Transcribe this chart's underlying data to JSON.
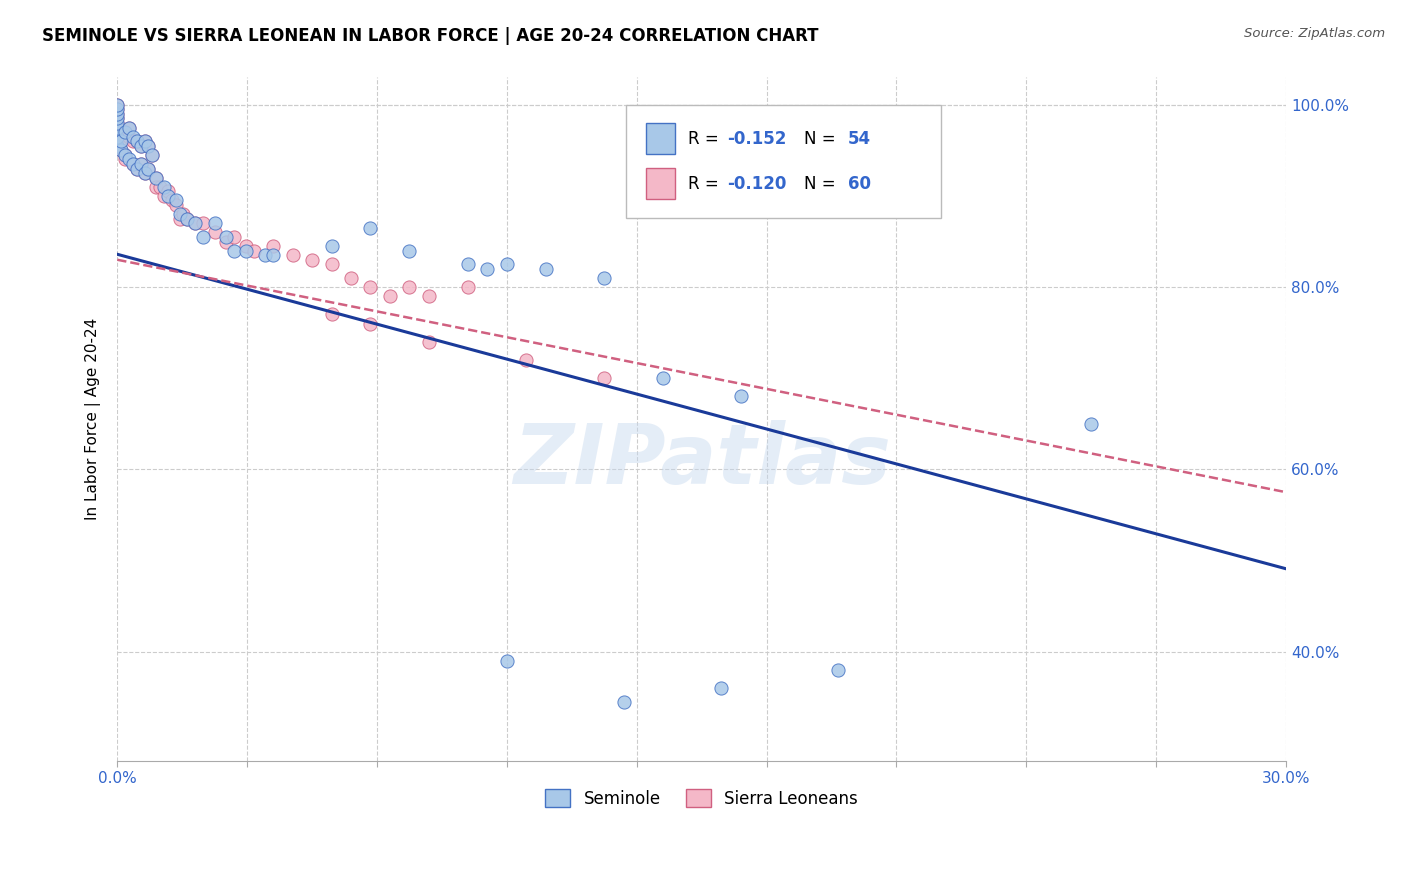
{
  "title": "SEMINOLE VS SIERRA LEONEAN IN LABOR FORCE | AGE 20-24 CORRELATION CHART",
  "source": "Source: ZipAtlas.com",
  "ylabel": "In Labor Force | Age 20-24",
  "x_min": 0.0,
  "x_max": 0.3,
  "y_min": 0.28,
  "y_max": 1.03,
  "seminole_color": "#A8C8E8",
  "sierra_color": "#F4B8C8",
  "seminole_edge_color": "#4472C4",
  "sierra_edge_color": "#D06080",
  "trend_seminole_color": "#1A3A99",
  "trend_sierra_color": "#D06080",
  "watermark": "ZIPatlas",
  "background_color": "#FFFFFF",
  "grid_color": "#CCCCCC",
  "seminole_x": [
    0.0,
    0.0,
    0.0,
    0.0,
    0.0,
    0.0,
    0.0,
    0.0,
    0.001,
    0.001,
    0.002,
    0.002,
    0.003,
    0.003,
    0.004,
    0.004,
    0.005,
    0.005,
    0.006,
    0.006,
    0.007,
    0.007,
    0.008,
    0.008,
    0.009,
    0.01,
    0.012,
    0.013,
    0.015,
    0.016,
    0.018,
    0.02,
    0.022,
    0.025,
    0.028,
    0.03,
    0.033,
    0.038,
    0.04,
    0.055,
    0.065,
    0.075,
    0.09,
    0.095,
    0.1,
    0.11,
    0.125,
    0.14,
    0.16,
    0.25,
    0.1,
    0.13,
    0.155,
    0.185
  ],
  "seminole_y": [
    0.955,
    0.965,
    0.975,
    0.98,
    0.985,
    0.99,
    0.995,
    1.0,
    0.95,
    0.96,
    0.945,
    0.97,
    0.94,
    0.975,
    0.935,
    0.965,
    0.93,
    0.96,
    0.935,
    0.955,
    0.925,
    0.96,
    0.93,
    0.955,
    0.945,
    0.92,
    0.91,
    0.9,
    0.895,
    0.88,
    0.875,
    0.87,
    0.855,
    0.87,
    0.855,
    0.84,
    0.84,
    0.835,
    0.835,
    0.845,
    0.865,
    0.84,
    0.825,
    0.82,
    0.825,
    0.82,
    0.81,
    0.7,
    0.68,
    0.65,
    0.39,
    0.345,
    0.36,
    0.38
  ],
  "sierra_x": [
    0.0,
    0.0,
    0.0,
    0.0,
    0.0,
    0.0,
    0.0,
    0.0,
    0.0,
    0.0,
    0.001,
    0.001,
    0.002,
    0.002,
    0.002,
    0.003,
    0.003,
    0.004,
    0.004,
    0.005,
    0.005,
    0.006,
    0.006,
    0.007,
    0.007,
    0.008,
    0.008,
    0.009,
    0.01,
    0.01,
    0.011,
    0.012,
    0.013,
    0.014,
    0.015,
    0.016,
    0.017,
    0.018,
    0.02,
    0.022,
    0.025,
    0.028,
    0.03,
    0.033,
    0.035,
    0.04,
    0.045,
    0.05,
    0.055,
    0.06,
    0.065,
    0.07,
    0.075,
    0.08,
    0.09,
    0.055,
    0.065,
    0.08,
    0.105,
    0.125
  ],
  "sierra_y": [
    0.96,
    0.965,
    0.97,
    0.975,
    0.98,
    0.985,
    0.99,
    0.995,
    1.0,
    0.955,
    0.95,
    0.96,
    0.945,
    0.97,
    0.94,
    0.965,
    0.975,
    0.935,
    0.96,
    0.93,
    0.96,
    0.935,
    0.955,
    0.925,
    0.96,
    0.93,
    0.955,
    0.945,
    0.92,
    0.91,
    0.91,
    0.9,
    0.905,
    0.895,
    0.89,
    0.875,
    0.88,
    0.875,
    0.87,
    0.87,
    0.86,
    0.85,
    0.855,
    0.845,
    0.84,
    0.845,
    0.835,
    0.83,
    0.825,
    0.81,
    0.8,
    0.79,
    0.8,
    0.79,
    0.8,
    0.77,
    0.76,
    0.74,
    0.72,
    0.7
  ],
  "trend_sem_slope": -1.15,
  "trend_sem_intercept": 0.836,
  "trend_sie_slope": -0.85,
  "trend_sie_intercept": 0.83
}
